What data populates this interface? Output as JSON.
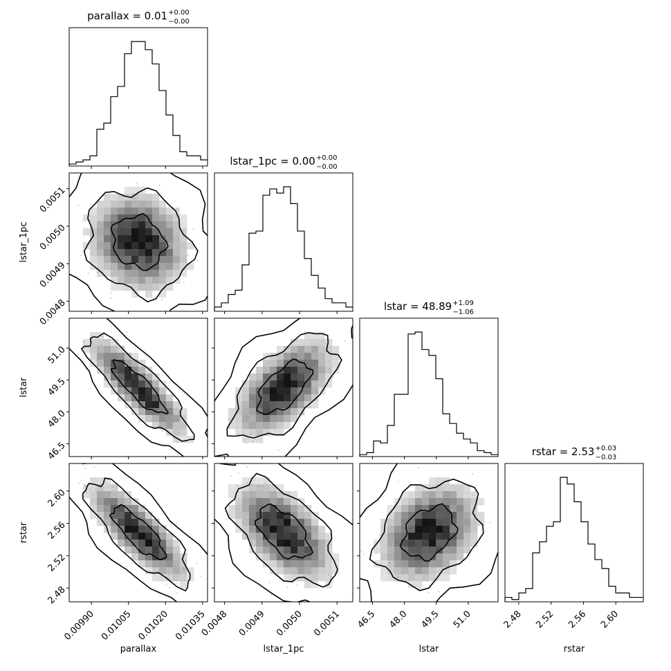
{
  "chart_data": {
    "type": "corner",
    "parameters": [
      {
        "name": "parallax",
        "xlabel": "parallax",
        "title": "parallax = 0.01",
        "title_sup": "+0.00",
        "title_sub": "−0.00",
        "range": [
          0.00981,
          0.01037
        ],
        "ticks": [
          0.0099,
          0.01005,
          0.0102,
          0.01035
        ],
        "ticklabels": [
          "0.00990",
          "0.01005",
          "0.01020",
          "0.01035"
        ],
        "hist": [
          1,
          2,
          3,
          5,
          18,
          21,
          34,
          39,
          55,
          61,
          61,
          57,
          50,
          37,
          25,
          15,
          7,
          5,
          5,
          3
        ]
      },
      {
        "name": "lstar_1pc",
        "xlabel": "lstar_1pc",
        "ylabel": "lstar_1pc",
        "title": "lstar_1pc = 0.00",
        "title_sup": "+0.00",
        "title_sub": "−0.00",
        "range": [
          0.004773,
          0.005142
        ],
        "ticks": [
          0.0048,
          0.0049,
          0.005,
          0.0051
        ],
        "ticklabels": [
          "0.0048",
          "0.0049",
          "0.0050",
          "0.0051"
        ],
        "hist": [
          2,
          4,
          8,
          10,
          22,
          37,
          38,
          55,
          58,
          56,
          59,
          51,
          38,
          25,
          17,
          11,
          6,
          4,
          4,
          2
        ]
      },
      {
        "name": "lstar",
        "xlabel": "lstar",
        "ylabel": "lstar",
        "title": "lstar = 48.89",
        "title_sup": "+1.09",
        "title_sub": "−1.06",
        "range": [
          45.9,
          52.4
        ],
        "ticks": [
          46.5,
          48.0,
          49.5,
          51.0
        ],
        "ticklabels": [
          "46.5",
          "48.0",
          "49.5",
          "51.0"
        ],
        "hist": [
          1,
          2,
          8,
          7,
          16,
          32,
          32,
          63,
          64,
          55,
          52,
          40,
          22,
          17,
          12,
          9,
          7,
          3,
          2,
          1
        ]
      },
      {
        "name": "rstar",
        "xlabel": "rstar",
        "ylabel": "rstar",
        "title": "rstar = 2.53",
        "title_sup": "+0.03",
        "title_sub": "−0.03",
        "range": [
          2.463,
          2.634
        ],
        "ticks": [
          2.48,
          2.52,
          2.56,
          2.6
        ],
        "ticklabels": [
          "2.48",
          "2.52",
          "2.56",
          "2.60"
        ],
        "hist": [
          2,
          1,
          4,
          6,
          22,
          27,
          34,
          36,
          56,
          53,
          45,
          36,
          26,
          19,
          15,
          7,
          4,
          4,
          2,
          2
        ]
      }
    ],
    "pairs": [
      {
        "row": 1,
        "col": 0,
        "corr": -0.15
      },
      {
        "row": 2,
        "col": 0,
        "corr": -0.85
      },
      {
        "row": 2,
        "col": 1,
        "corr": 0.6
      },
      {
        "row": 3,
        "col": 0,
        "corr": -0.8
      },
      {
        "row": 3,
        "col": 1,
        "corr": -0.55
      },
      {
        "row": 3,
        "col": 2,
        "corr": 0.3
      }
    ],
    "hist_bins": 20,
    "contour_levels": [
      0.39,
      0.86,
      0.99
    ],
    "colors": {
      "line": "#000000",
      "density": "#000000",
      "points": "#8a8a8a",
      "background": "#ffffff"
    }
  }
}
